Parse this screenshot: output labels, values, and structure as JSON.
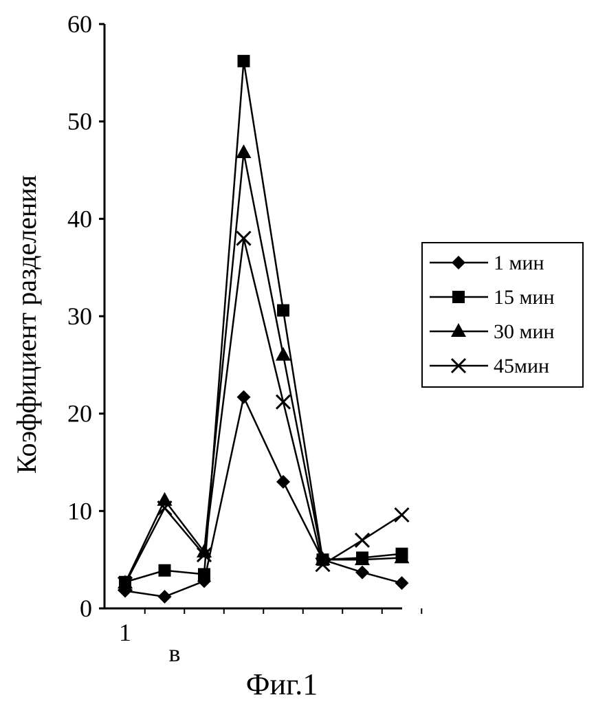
{
  "chart_data": {
    "type": "line",
    "ylabel": "Коэффициент разделения",
    "caption": "Фиг.1",
    "x_tick_labels": [
      "1",
      "в"
    ],
    "ylim": [
      0,
      60
    ],
    "yticks": [
      "0",
      "10",
      "20",
      "30",
      "40",
      "50",
      "60"
    ],
    "x": [
      1,
      2,
      3,
      4,
      5,
      6,
      7,
      8
    ],
    "series": [
      {
        "name": "1 мин",
        "marker": "diamond",
        "values": [
          1.8,
          1.2,
          2.8,
          21.7,
          13.0,
          5.0,
          3.7,
          2.6
        ]
      },
      {
        "name": "15 мин",
        "marker": "square",
        "values": [
          2.7,
          3.9,
          3.5,
          56.2,
          30.6,
          5.0,
          5.2,
          5.6
        ]
      },
      {
        "name": "30 мин",
        "marker": "triangle",
        "values": [
          2.6,
          11.1,
          5.8,
          46.8,
          26.0,
          5.0,
          5.0,
          5.2
        ]
      },
      {
        "name": "45мин",
        "marker": "x",
        "values": [
          2.5,
          10.3,
          5.5,
          38.0,
          21.2,
          4.5,
          7.0,
          9.6
        ]
      }
    ],
    "legend": "right",
    "grid": false
  }
}
